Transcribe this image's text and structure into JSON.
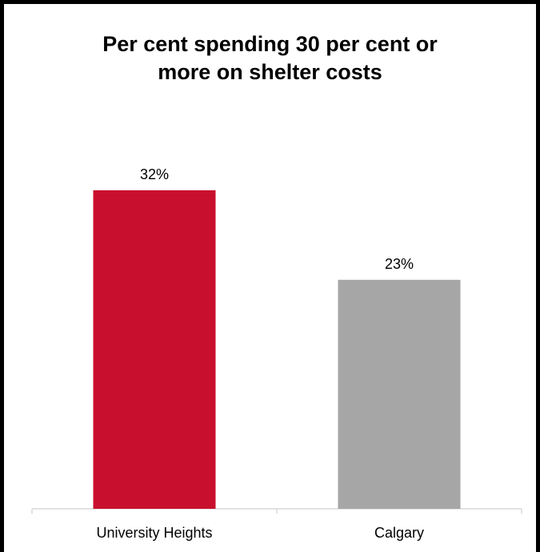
{
  "chart_data": {
    "type": "bar",
    "title": "Per cent spending 30 per cent or more on shelter costs",
    "title_lines": [
      "Per cent spending 30 per cent or",
      "more on shelter costs"
    ],
    "categories": [
      "University Heights",
      "Calgary"
    ],
    "values": [
      32,
      23
    ],
    "data_labels": [
      "32%",
      "23%"
    ],
    "unit": "%",
    "colors": [
      "#c8102e",
      "#a6a6a6"
    ],
    "axis_color": "#d9d9d9",
    "ylim": [
      0,
      36
    ],
    "grid": false,
    "legend": "none",
    "xlabel": "",
    "ylabel": ""
  }
}
